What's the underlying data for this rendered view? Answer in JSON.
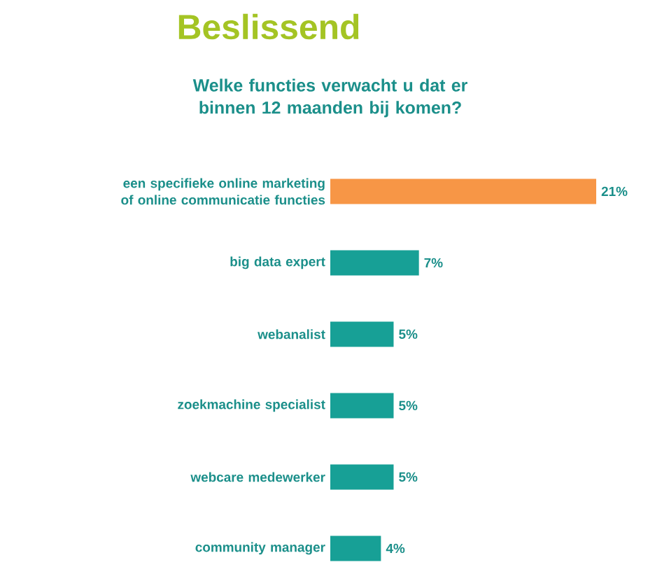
{
  "chart_data": {
    "type": "bar",
    "orientation": "horizontal",
    "title": "Beslissend",
    "subtitle": "Welke functies verwacht u dat er binnen 12 maanden bij komen?",
    "categories": [
      "een specifieke online marketing of online communicatie functies",
      "big data expert",
      "webanalist",
      "zoekmachine specialist",
      "webcare medewerker",
      "community manager"
    ],
    "values": [
      21,
      7,
      5,
      5,
      5,
      4
    ],
    "colors": [
      "#f79646",
      "#17a096",
      "#17a096",
      "#17a096",
      "#17a096",
      "#17a096"
    ],
    "value_labels": [
      "21%",
      "7%",
      "5%",
      "5%",
      "5%",
      "4%"
    ]
  }
}
